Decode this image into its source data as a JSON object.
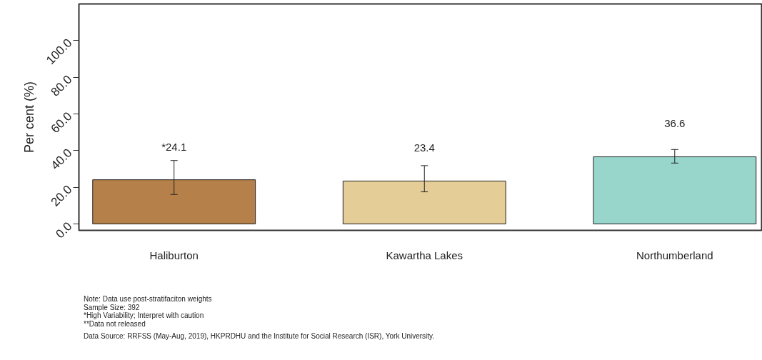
{
  "chart_data": {
    "type": "bar",
    "ylabel": "Per cent (%)",
    "categories": [
      "Haliburton",
      "Kawartha Lakes",
      "Northumberland"
    ],
    "values": [
      24.1,
      23.4,
      36.6
    ],
    "colors": [
      "#b5804a",
      "#e5cd98",
      "#98d6cc"
    ],
    "errors": [
      [
        16.1,
        34.6
      ],
      [
        17.5,
        31.8
      ],
      [
        33.2,
        40.6
      ]
    ],
    "value_labels": [
      "*24.1",
      "23.4",
      "36.6"
    ],
    "ylim": [
      -3.5,
      120
    ],
    "yticks": [
      {
        "value": 0,
        "label": "0.0"
      },
      {
        "value": 20,
        "label": "20.0"
      },
      {
        "value": 40,
        "label": "40.0"
      },
      {
        "value": 60,
        "label": "60.0"
      },
      {
        "value": 80,
        "label": "80.0"
      },
      {
        "value": 100,
        "label": "100.0"
      }
    ],
    "grid": false,
    "annotations": [
      "Note: Data use post-stratifaciton weights",
      "Sample Size: 392",
      "*High Variability; Interpret with caution",
      "**Data not released",
      "Data Source: RRFSS (May-Aug, 2019), HKPRDHU and the Institute for Social Research (ISR), York University."
    ]
  }
}
